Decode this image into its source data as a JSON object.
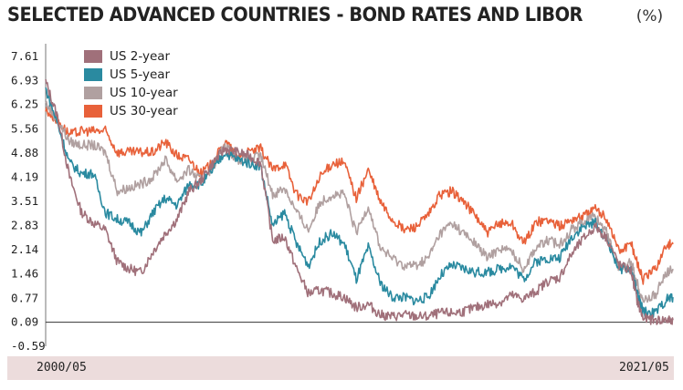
{
  "header": {
    "title": "SELECTED ADVANCED COUNTRIES - BOND RATES AND LIBOR",
    "unit": "(%)"
  },
  "chart_data": {
    "type": "line",
    "title": "SELECTED ADVANCED COUNTRIES - BOND RATES AND LIBOR",
    "ylabel": "%",
    "ylim": [
      -0.59,
      7.61
    ],
    "yticks": [
      "7.61",
      "6.93",
      "6.25",
      "5.56",
      "4.88",
      "4.19",
      "3.51",
      "2.83",
      "2.14",
      "1.46",
      "0.77",
      "0.09",
      "-0.59"
    ],
    "x_start_label": "2000/05",
    "x_end_label": "2021/05",
    "grid": false,
    "legend_position": "top-left",
    "x": [
      2000.4,
      2000.8,
      2001.2,
      2001.6,
      2002.0,
      2002.4,
      2002.8,
      2003.2,
      2003.6,
      2004.0,
      2004.4,
      2004.8,
      2005.2,
      2005.6,
      2006.0,
      2006.4,
      2006.8,
      2007.2,
      2007.6,
      2008.0,
      2008.4,
      2008.8,
      2009.2,
      2009.6,
      2010.0,
      2010.4,
      2010.8,
      2011.2,
      2011.6,
      2012.0,
      2012.4,
      2012.8,
      2013.2,
      2013.6,
      2014.0,
      2014.4,
      2014.8,
      2015.2,
      2015.6,
      2016.0,
      2016.4,
      2016.8,
      2017.2,
      2017.6,
      2018.0,
      2018.4,
      2018.8,
      2019.2,
      2019.6,
      2020.0,
      2020.2,
      2020.4,
      2020.8,
      2021.2,
      2021.4
    ],
    "series": [
      {
        "name": "US 2-year",
        "color": "#a0707a",
        "values": [
          6.9,
          5.9,
          4.2,
          3.2,
          2.9,
          2.7,
          1.8,
          1.6,
          1.5,
          2.1,
          2.6,
          3.0,
          3.8,
          4.1,
          4.6,
          5.0,
          4.9,
          4.8,
          4.6,
          2.4,
          2.5,
          1.6,
          0.9,
          1.0,
          0.9,
          0.8,
          0.5,
          0.6,
          0.3,
          0.25,
          0.3,
          0.25,
          0.25,
          0.35,
          0.35,
          0.4,
          0.5,
          0.6,
          0.65,
          0.85,
          0.75,
          0.95,
          1.25,
          1.35,
          2.0,
          2.45,
          2.8,
          2.45,
          1.7,
          1.55,
          0.7,
          0.2,
          0.15,
          0.15,
          0.15
        ]
      },
      {
        "name": "US 5-year",
        "color": "#2a8aa0",
        "values": [
          6.7,
          5.7,
          4.6,
          4.3,
          4.3,
          3.2,
          3.0,
          2.9,
          2.6,
          3.2,
          3.6,
          3.4,
          4.0,
          4.0,
          4.4,
          4.9,
          4.7,
          4.6,
          4.5,
          2.8,
          3.2,
          2.3,
          1.7,
          2.4,
          2.6,
          2.3,
          1.3,
          2.2,
          1.2,
          0.8,
          0.8,
          0.7,
          0.8,
          1.4,
          1.7,
          1.6,
          1.5,
          1.5,
          1.6,
          1.7,
          1.3,
          1.8,
          1.9,
          1.9,
          2.5,
          2.8,
          2.9,
          2.4,
          1.6,
          1.6,
          0.9,
          0.4,
          0.35,
          0.75,
          0.8
        ]
      },
      {
        "name": "US 10-year",
        "color": "#b0a0a0",
        "values": [
          6.3,
          5.8,
          5.2,
          5.1,
          5.1,
          4.9,
          3.8,
          3.9,
          4.0,
          4.2,
          4.7,
          4.1,
          4.4,
          4.1,
          4.5,
          5.1,
          4.7,
          4.7,
          4.8,
          3.7,
          3.9,
          3.2,
          2.7,
          3.5,
          3.7,
          3.7,
          2.6,
          3.4,
          2.2,
          1.9,
          1.7,
          1.7,
          1.9,
          2.6,
          2.9,
          2.6,
          2.3,
          1.9,
          2.2,
          2.1,
          1.6,
          2.2,
          2.4,
          2.3,
          2.7,
          2.95,
          3.1,
          2.6,
          1.6,
          1.8,
          1.2,
          0.7,
          0.85,
          1.5,
          1.6
        ]
      },
      {
        "name": "US 30-year",
        "color": "#e8613a",
        "values": [
          6.1,
          5.8,
          5.4,
          5.5,
          5.5,
          5.5,
          4.9,
          4.9,
          4.9,
          4.9,
          5.2,
          4.8,
          4.7,
          4.3,
          4.6,
          5.2,
          4.8,
          4.9,
          5.0,
          4.4,
          4.6,
          3.7,
          3.5,
          4.2,
          4.6,
          4.6,
          3.6,
          4.4,
          3.5,
          3.0,
          2.7,
          2.8,
          3.1,
          3.7,
          3.8,
          3.5,
          3.1,
          2.6,
          2.9,
          2.9,
          2.3,
          2.9,
          3.0,
          2.8,
          3.0,
          3.1,
          3.3,
          3.0,
          2.1,
          2.3,
          1.8,
          1.3,
          1.6,
          2.3,
          2.3
        ]
      }
    ]
  }
}
